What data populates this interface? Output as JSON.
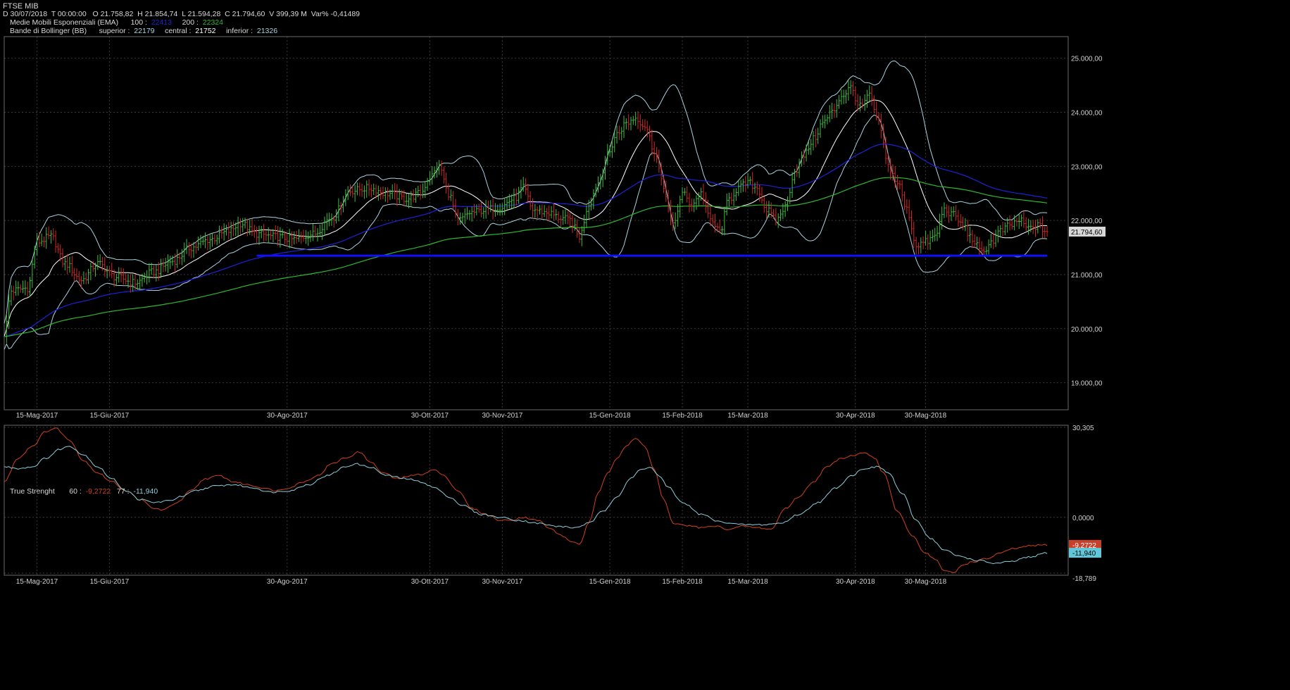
{
  "header": {
    "title": "FTSE MIB",
    "quote": {
      "date": "D 30/07/2018",
      "time": "T 00:00:00",
      "open": "O 21.758,82",
      "high": "H 21.854,74",
      "low": "L 21.594,28",
      "close": "C 21.794,60",
      "volume": "V 399,39 M",
      "var": "Var% -0,41489"
    },
    "ema": {
      "label": "Medie Mobili Esponenziali (EMA)",
      "p1_label": "100 :",
      "p1_value": "22413",
      "p2_label": "200 :",
      "p2_value": "22324"
    },
    "bb": {
      "label": "Bande di Bollinger (BB)",
      "sup_label": "superior :",
      "sup_value": "22179",
      "cen_label": "central :",
      "cen_value": "21752",
      "inf_label": "inferior :",
      "inf_value": "21326"
    },
    "tsi": {
      "label": "True Strenght",
      "p1_label": "60 :",
      "p1_value": "-9,2722",
      "p2_label": "77 :",
      "p2_value": "-11,940"
    }
  },
  "colors": {
    "up": "#3cbf3c",
    "down": "#d02828",
    "ema100": "#2020d8",
    "ema200": "#2fb82f",
    "bb_band": "#a8d4e0",
    "bb_mid": "#ffffff",
    "support": "#1010ff",
    "tsi_fast": "#d0401c",
    "tsi_slow": "#8ccfdc",
    "grid": "#3a3a3a"
  },
  "chart_data": [
    {
      "type": "candlestick",
      "title": "FTSE MIB",
      "y_ticks": [
        "25.000,00",
        "24.000,00",
        "23.000,00",
        "22.000,00",
        "21.000,00",
        "20.000,00",
        "19.000,00"
      ],
      "y_tick_values": [
        25000,
        24000,
        23000,
        22000,
        21000,
        20000,
        19000
      ],
      "ylim": [
        18500,
        25400
      ],
      "x_tick_labels": [
        "15-Mag-2017",
        "15-Giu-2017",
        "30-Ago-2017",
        "30-Ott-2017",
        "30-Nov-2017",
        "15-Gen-2018",
        "15-Feb-2018",
        "15-Mar-2018",
        "30-Apr-2018",
        "30-Mag-2018"
      ],
      "x_tick_days": [
        14,
        45,
        121,
        182,
        213,
        259,
        290,
        318,
        364,
        394
      ],
      "x_range_days": [
        0,
        455
      ],
      "last_price_label": "21.794,60",
      "last_price": 21794.6,
      "price_anchors": [
        [
          0,
          19900
        ],
        [
          3,
          20700
        ],
        [
          10,
          20750
        ],
        [
          14,
          21600
        ],
        [
          20,
          21700
        ],
        [
          26,
          21200
        ],
        [
          33,
          20900
        ],
        [
          40,
          21200
        ],
        [
          48,
          20950
        ],
        [
          56,
          20850
        ],
        [
          64,
          21050
        ],
        [
          72,
          21250
        ],
        [
          80,
          21500
        ],
        [
          88,
          21650
        ],
        [
          96,
          21800
        ],
        [
          101,
          21950
        ],
        [
          108,
          21750
        ],
        [
          116,
          21700
        ],
        [
          124,
          21650
        ],
        [
          132,
          21750
        ],
        [
          140,
          22050
        ],
        [
          148,
          22550
        ],
        [
          156,
          22600
        ],
        [
          164,
          22500
        ],
        [
          172,
          22400
        ],
        [
          178,
          22500
        ],
        [
          182,
          22800
        ],
        [
          186,
          23000
        ],
        [
          190,
          22500
        ],
        [
          194,
          22000
        ],
        [
          200,
          22150
        ],
        [
          206,
          22200
        ],
        [
          212,
          22250
        ],
        [
          218,
          22400
        ],
        [
          222,
          22600
        ],
        [
          226,
          22200
        ],
        [
          232,
          22150
        ],
        [
          238,
          22050
        ],
        [
          242,
          22000
        ],
        [
          246,
          21700
        ],
        [
          250,
          22300
        ],
        [
          254,
          22700
        ],
        [
          258,
          23200
        ],
        [
          262,
          23600
        ],
        [
          266,
          23800
        ],
        [
          270,
          23900
        ],
        [
          274,
          23750
        ],
        [
          278,
          23300
        ],
        [
          282,
          22600
        ],
        [
          286,
          21900
        ],
        [
          290,
          22500
        ],
        [
          294,
          22300
        ],
        [
          298,
          22500
        ],
        [
          302,
          22000
        ],
        [
          306,
          21800
        ],
        [
          310,
          22400
        ],
        [
          314,
          22600
        ],
        [
          318,
          22700
        ],
        [
          322,
          22600
        ],
        [
          326,
          22200
        ],
        [
          330,
          22000
        ],
        [
          334,
          22250
        ],
        [
          338,
          22900
        ],
        [
          342,
          23200
        ],
        [
          346,
          23500
        ],
        [
          350,
          23800
        ],
        [
          354,
          24000
        ],
        [
          358,
          24300
        ],
        [
          362,
          24450
        ],
        [
          366,
          24100
        ],
        [
          370,
          24300
        ],
        [
          374,
          23800
        ],
        [
          378,
          23000
        ],
        [
          382,
          22700
        ],
        [
          386,
          22200
        ],
        [
          390,
          21550
        ],
        [
          394,
          21600
        ],
        [
          398,
          21700
        ],
        [
          402,
          22200
        ],
        [
          406,
          22100
        ],
        [
          410,
          21900
        ],
        [
          414,
          21650
        ],
        [
          418,
          21400
        ],
        [
          422,
          21600
        ],
        [
          426,
          21800
        ],
        [
          430,
          21900
        ],
        [
          434,
          22000
        ],
        [
          438,
          21850
        ],
        [
          442,
          21900
        ],
        [
          446,
          21795
        ]
      ],
      "series": [
        {
          "name": "EMA 100",
          "last": 22413
        },
        {
          "name": "EMA 200",
          "last": 22324
        },
        {
          "name": "BB superior",
          "last": 22179
        },
        {
          "name": "BB central",
          "last": 21752
        },
        {
          "name": "BB inferior",
          "last": 21326
        }
      ],
      "support_line": {
        "value": 21350,
        "from_day": 108,
        "to_day": 446
      },
      "grid": true
    },
    {
      "type": "line",
      "title": "True Strenght",
      "y_ticks": [
        "30,305",
        "0,0000",
        "-18,789"
      ],
      "y_tick_values": [
        30.305,
        0,
        -18.789
      ],
      "ylim": [
        -19.5,
        31
      ],
      "x_tick_labels": [
        "15-Mag-2017",
        "15-Giu-2017",
        "30-Ago-2017",
        "30-Ott-2017",
        "30-Nov-2017",
        "15-Gen-2018",
        "15-Feb-2018",
        "15-Mar-2018",
        "30-Apr-2018",
        "30-Mag-2018"
      ],
      "series": [
        {
          "name": "60",
          "last": -9.2722,
          "anchors": [
            [
              0,
              12
            ],
            [
              6,
              20
            ],
            [
              12,
              24
            ],
            [
              18,
              29
            ],
            [
              22,
              30
            ],
            [
              28,
              26
            ],
            [
              34,
              19
            ],
            [
              40,
              15
            ],
            [
              46,
              12
            ],
            [
              52,
              9
            ],
            [
              58,
              6
            ],
            [
              64,
              3
            ],
            [
              68,
              2.5
            ],
            [
              74,
              5
            ],
            [
              80,
              9
            ],
            [
              86,
              13
            ],
            [
              92,
              14
            ],
            [
              98,
              12
            ],
            [
              104,
              11
            ],
            [
              110,
              10
            ],
            [
              116,
              9
            ],
            [
              122,
              10
            ],
            [
              128,
              12
            ],
            [
              134,
              14
            ],
            [
              140,
              18
            ],
            [
              146,
              20
            ],
            [
              152,
              22
            ],
            [
              156,
              19
            ],
            [
              162,
              15
            ],
            [
              168,
              13
            ],
            [
              174,
              14
            ],
            [
              178,
              14.5
            ],
            [
              184,
              16
            ],
            [
              188,
              14
            ],
            [
              194,
              9
            ],
            [
              200,
              3
            ],
            [
              206,
              1
            ],
            [
              212,
              -1
            ],
            [
              216,
              -1
            ],
            [
              222,
              0
            ],
            [
              228,
              -1
            ],
            [
              234,
              -4
            ],
            [
              238,
              -6
            ],
            [
              242,
              -8
            ],
            [
              246,
              -9
            ],
            [
              250,
              -2
            ],
            [
              254,
              8
            ],
            [
              258,
              15
            ],
            [
              262,
              20
            ],
            [
              266,
              24
            ],
            [
              270,
              26.5
            ],
            [
              274,
              24
            ],
            [
              278,
              16
            ],
            [
              282,
              6
            ],
            [
              286,
              -2
            ],
            [
              290,
              -2.5
            ],
            [
              294,
              -3
            ],
            [
              298,
              -3.5
            ],
            [
              304,
              -3
            ],
            [
              310,
              -4
            ],
            [
              316,
              -3
            ],
            [
              322,
              -3.5
            ],
            [
              328,
              -4
            ],
            [
              334,
              3
            ],
            [
              340,
              7
            ],
            [
              346,
              12
            ],
            [
              352,
              17
            ],
            [
              358,
              20
            ],
            [
              364,
              21
            ],
            [
              368,
              22
            ],
            [
              372,
              20
            ],
            [
              376,
              15
            ],
            [
              382,
              2
            ],
            [
              388,
              -6
            ],
            [
              394,
              -12
            ],
            [
              398,
              -14
            ],
            [
              402,
              -18
            ],
            [
              406,
              -18.7
            ],
            [
              410,
              -16
            ],
            [
              414,
              -15
            ],
            [
              420,
              -14
            ],
            [
              426,
              -12
            ],
            [
              432,
              -10.5
            ],
            [
              440,
              -9.5
            ],
            [
              446,
              -9.27
            ]
          ]
        },
        {
          "name": "77",
          "last": -11.94,
          "anchors": [
            [
              0,
              17
            ],
            [
              6,
              16.5
            ],
            [
              12,
              17
            ],
            [
              18,
              20
            ],
            [
              24,
              23
            ],
            [
              28,
              24
            ],
            [
              34,
              21
            ],
            [
              40,
              17
            ],
            [
              46,
              13
            ],
            [
              52,
              9
            ],
            [
              58,
              6
            ],
            [
              64,
              5
            ],
            [
              70,
              5.5
            ],
            [
              76,
              7
            ],
            [
              82,
              9
            ],
            [
              90,
              10.5
            ],
            [
              98,
              11
            ],
            [
              106,
              10
            ],
            [
              114,
              8.5
            ],
            [
              122,
              9
            ],
            [
              130,
              11
            ],
            [
              138,
              14
            ],
            [
              146,
              17
            ],
            [
              150,
              18
            ],
            [
              156,
              17
            ],
            [
              164,
              14
            ],
            [
              172,
              13
            ],
            [
              178,
              12
            ],
            [
              184,
              10
            ],
            [
              190,
              7
            ],
            [
              196,
              4
            ],
            [
              204,
              1
            ],
            [
              212,
              0
            ],
            [
              220,
              -1
            ],
            [
              228,
              -2
            ],
            [
              236,
              -3
            ],
            [
              244,
              -3.5
            ],
            [
              250,
              -2
            ],
            [
              256,
              2
            ],
            [
              262,
              7
            ],
            [
              268,
              13
            ],
            [
              272,
              16
            ],
            [
              276,
              17
            ],
            [
              280,
              14
            ],
            [
              284,
              10
            ],
            [
              290,
              5
            ],
            [
              298,
              1
            ],
            [
              306,
              -1.5
            ],
            [
              316,
              -2.5
            ],
            [
              324,
              -2.5
            ],
            [
              332,
              -2
            ],
            [
              340,
              1
            ],
            [
              348,
              5
            ],
            [
              356,
              10
            ],
            [
              362,
              14
            ],
            [
              368,
              16.5
            ],
            [
              374,
              17
            ],
            [
              378,
              15
            ],
            [
              384,
              8
            ],
            [
              390,
              -1
            ],
            [
              396,
              -7
            ],
            [
              402,
              -11
            ],
            [
              408,
              -13
            ],
            [
              416,
              -14.5
            ],
            [
              424,
              -15.5
            ],
            [
              430,
              -15
            ],
            [
              438,
              -13.5
            ],
            [
              446,
              -11.94
            ]
          ]
        }
      ],
      "grid": true
    }
  ]
}
